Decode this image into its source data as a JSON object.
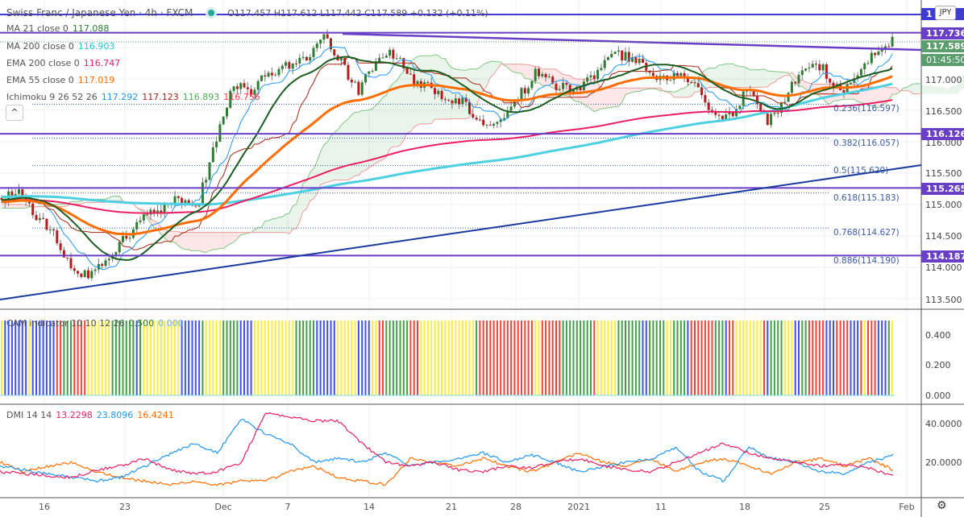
{
  "header": {
    "symbol": "Swiss Franc / Japanese Yen · 4h · FXCM",
    "ohlc": "O117.457 H117.612 L117.442 C117.589 +0.132 (+0.11%)"
  },
  "indicators": {
    "ma21": {
      "label": "MA 21 close 0",
      "value": "117.088",
      "color": "#1b5e20"
    },
    "ma200": {
      "label": "MA 200 close 0",
      "value": "116.903",
      "color": "#26c6da"
    },
    "ema200": {
      "label": "EMA 200 close 0",
      "value": "116.747",
      "color": "#e91e63"
    },
    "ema55": {
      "label": "EMA 55 close 0",
      "value": "117.019",
      "color": "#ff6d00"
    },
    "ichimoku": {
      "label": "Ichimoku 9 26 52 26",
      "v1": "117.292",
      "v2": "117.123",
      "v3": "116.893",
      "v4": "116.756"
    },
    "collapse": "^"
  },
  "price_axis": {
    "currency": "JPY",
    "ticks": [
      "117.000",
      "116.500",
      "116.000",
      "115.500",
      "115.000",
      "114.500",
      "114.000",
      "113.500"
    ],
    "levels": [
      {
        "value": "117.736",
        "price": 117.736
      },
      {
        "value": "116.126",
        "price": 116.126
      },
      {
        "value": "115.265",
        "price": 115.265
      },
      {
        "value": "114.187",
        "price": 114.187
      }
    ],
    "top_level_price": 117.97,
    "top_level_label": "1",
    "last_price": "117.589",
    "countdown": "01:45:50"
  },
  "fib": [
    {
      "label": "0.236(116.597)",
      "price": 116.597
    },
    {
      "label": "0.382(116.057)",
      "price": 116.057
    },
    {
      "label": "0.5(115.620)",
      "price": 115.62
    },
    {
      "label": "0.618(115.183)",
      "price": 115.183
    },
    {
      "label": "0.768(114.627)",
      "price": 114.627
    },
    {
      "label": "0.886(114.190)",
      "price": 114.19
    }
  ],
  "cam": {
    "label": "CAM indicator 10 10 12 26",
    "v1": "0.500",
    "v2": "0.000",
    "ticks": [
      "0.400",
      "0.200",
      "0.000"
    ],
    "colors": [
      "#ffeb3b",
      "#f44336",
      "#3f51f5",
      "#43a047"
    ]
  },
  "dmi": {
    "label": "DMI 14 14",
    "v1": "13.2298",
    "v2": "23.8096",
    "v3": "16.4241",
    "ticks": [
      "40.0000",
      "20.0000"
    ]
  },
  "time_axis": [
    "16",
    "23",
    "Dec",
    "7",
    "14",
    "21",
    "28",
    "2021",
    "11",
    "18",
    "25",
    "Feb"
  ],
  "chart_data": {
    "type": "candlestick",
    "title": "Swiss Franc / Japanese Yen · 4h · FXCM",
    "ylim": [
      113.3,
      118.2
    ],
    "close_waypoints": [
      115.1,
      115.2,
      114.8,
      114.5,
      113.95,
      113.85,
      114.2,
      114.5,
      114.8,
      114.9,
      115.1,
      115.0,
      116.0,
      116.9,
      116.8,
      117.1,
      117.2,
      117.3,
      117.7,
      117.3,
      116.8,
      117.3,
      117.4,
      117.0,
      116.9,
      116.7,
      116.6,
      116.3,
      116.4,
      116.7,
      117.1,
      116.9,
      116.8,
      117.0,
      117.3,
      117.4,
      117.2,
      117.0,
      117.1,
      116.9,
      116.4,
      116.4,
      116.9,
      116.3,
      116.7,
      117.2,
      117.2,
      116.8,
      117.0,
      117.4,
      117.6
    ],
    "dmi_series": {
      "adx": [
        15,
        14,
        13,
        12,
        16,
        18,
        22,
        16,
        14,
        15,
        20,
        46,
        44,
        42,
        42,
        30,
        20,
        18,
        20,
        16,
        15,
        18,
        17,
        20,
        22,
        18,
        16,
        15,
        20,
        25,
        30,
        25,
        22,
        20,
        18,
        19,
        17,
        13
      ],
      "plus_di": [
        18,
        16,
        14,
        12,
        10,
        12,
        18,
        24,
        30,
        25,
        43,
        35,
        30,
        20,
        22,
        20,
        25,
        18,
        20,
        22,
        25,
        20,
        24,
        20,
        15,
        18,
        20,
        22,
        28,
        15,
        10,
        28,
        22,
        20,
        15,
        14,
        20,
        24
      ],
      "minus_di": [
        20,
        15,
        18,
        20,
        15,
        12,
        10,
        8,
        10,
        8,
        10,
        10,
        15,
        18,
        12,
        10,
        8,
        22,
        20,
        18,
        22,
        18,
        15,
        20,
        25,
        20,
        18,
        22,
        15,
        20,
        22,
        18,
        14,
        20,
        22,
        18,
        22,
        16
      ]
    }
  }
}
